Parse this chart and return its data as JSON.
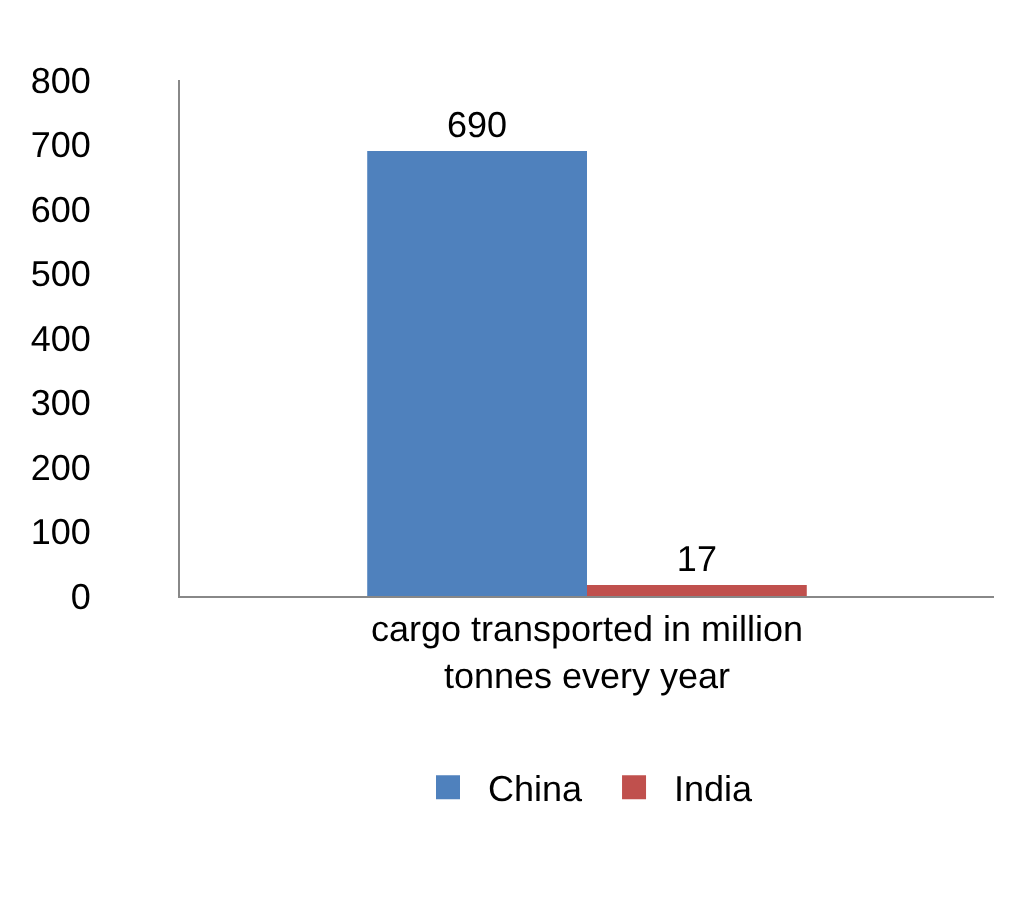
{
  "chart_data": {
    "type": "bar",
    "categories": [
      "cargo transported in million tonnes every year"
    ],
    "series": [
      {
        "name": "China",
        "color": "#4f81bd",
        "values": [
          690
        ]
      },
      {
        "name": "India",
        "color": "#c0504d",
        "values": [
          17
        ]
      }
    ],
    "ylim": [
      0,
      800
    ],
    "yticks": [
      0,
      100,
      200,
      300,
      400,
      500,
      600,
      700,
      800
    ],
    "grid": false,
    "legend": "bottom",
    "data_labels": true
  }
}
